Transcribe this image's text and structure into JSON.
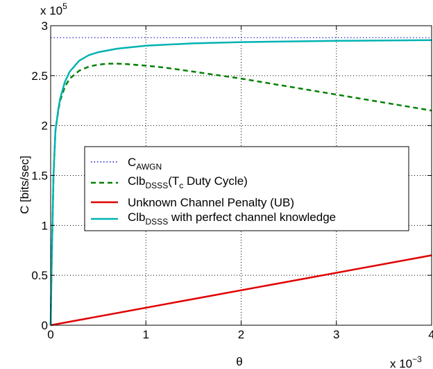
{
  "chart_data": {
    "type": "line",
    "xlabel": "θ",
    "ylabel": "C [bits/sec]",
    "xlim": [
      0,
      0.004
    ],
    "ylim": [
      0,
      300000
    ],
    "x_ticks": [
      0,
      0.001,
      0.002,
      0.003,
      0.004
    ],
    "x_tick_labels": [
      "0",
      "1",
      "2",
      "3",
      "4"
    ],
    "y_ticks": [
      0,
      50000,
      100000,
      150000,
      200000,
      250000,
      300000
    ],
    "y_tick_labels": [
      "0",
      "0.5",
      "1",
      "1.5",
      "2",
      "2.5",
      "3"
    ],
    "x_multiplier": {
      "base": "x 10",
      "exp": "−3"
    },
    "y_multiplier": {
      "base": "x 10",
      "exp": "5"
    },
    "grid": true,
    "legend_position": "center-left",
    "series": [
      {
        "key": "awgn",
        "name": "C",
        "subscript": "AWGN",
        "suffix": "",
        "color": "#4b4bd9",
        "style": "dotted",
        "x": [
          0,
          0.004
        ],
        "y": [
          288000,
          288000
        ]
      },
      {
        "key": "duty",
        "name": "Clb",
        "subscript": "DSSS",
        "suffix": "(T",
        "suffix_sub": "c",
        "suffix_tail": " Duty Cycle)",
        "color": "#008000",
        "style": "dashed",
        "x": [
          0,
          1e-05,
          3e-05,
          5e-05,
          8e-05,
          0.0001,
          0.00015,
          0.0002,
          0.0003,
          0.0004,
          0.0005,
          0.0006,
          0.0007,
          0.0008,
          0.001,
          0.0012,
          0.0015,
          0.002,
          0.0025,
          0.003,
          0.0035,
          0.004
        ],
        "y": [
          0,
          60000,
          150000,
          195000,
          215000,
          225000,
          239000,
          247000,
          255000,
          259000,
          261000,
          262000,
          262000,
          261500,
          260000,
          258000,
          254000,
          247000,
          239000,
          231000,
          223000,
          215000
        ]
      },
      {
        "key": "penalty",
        "name": "Unknown Channel Penalty (UB)",
        "subscript": "",
        "suffix": "",
        "color": "#e00000",
        "style": "solid",
        "x": [
          0,
          0.004
        ],
        "y": [
          0,
          70000
        ]
      },
      {
        "key": "perfect",
        "name": "Clb",
        "subscript": "DSSS",
        "suffix": " with perfect channel knowledge",
        "color": "#00b2b2",
        "style": "solid",
        "x": [
          0,
          1e-05,
          3e-05,
          5e-05,
          8e-05,
          0.0001,
          0.00015,
          0.0002,
          0.0003,
          0.0004,
          0.0005,
          0.0007,
          0.001,
          0.0015,
          0.002,
          0.003,
          0.004
        ],
        "y": [
          0,
          60000,
          150000,
          195000,
          216000,
          227000,
          244000,
          254000,
          265000,
          270500,
          273500,
          277000,
          280000,
          282300,
          283600,
          284800,
          285500
        ]
      }
    ]
  }
}
